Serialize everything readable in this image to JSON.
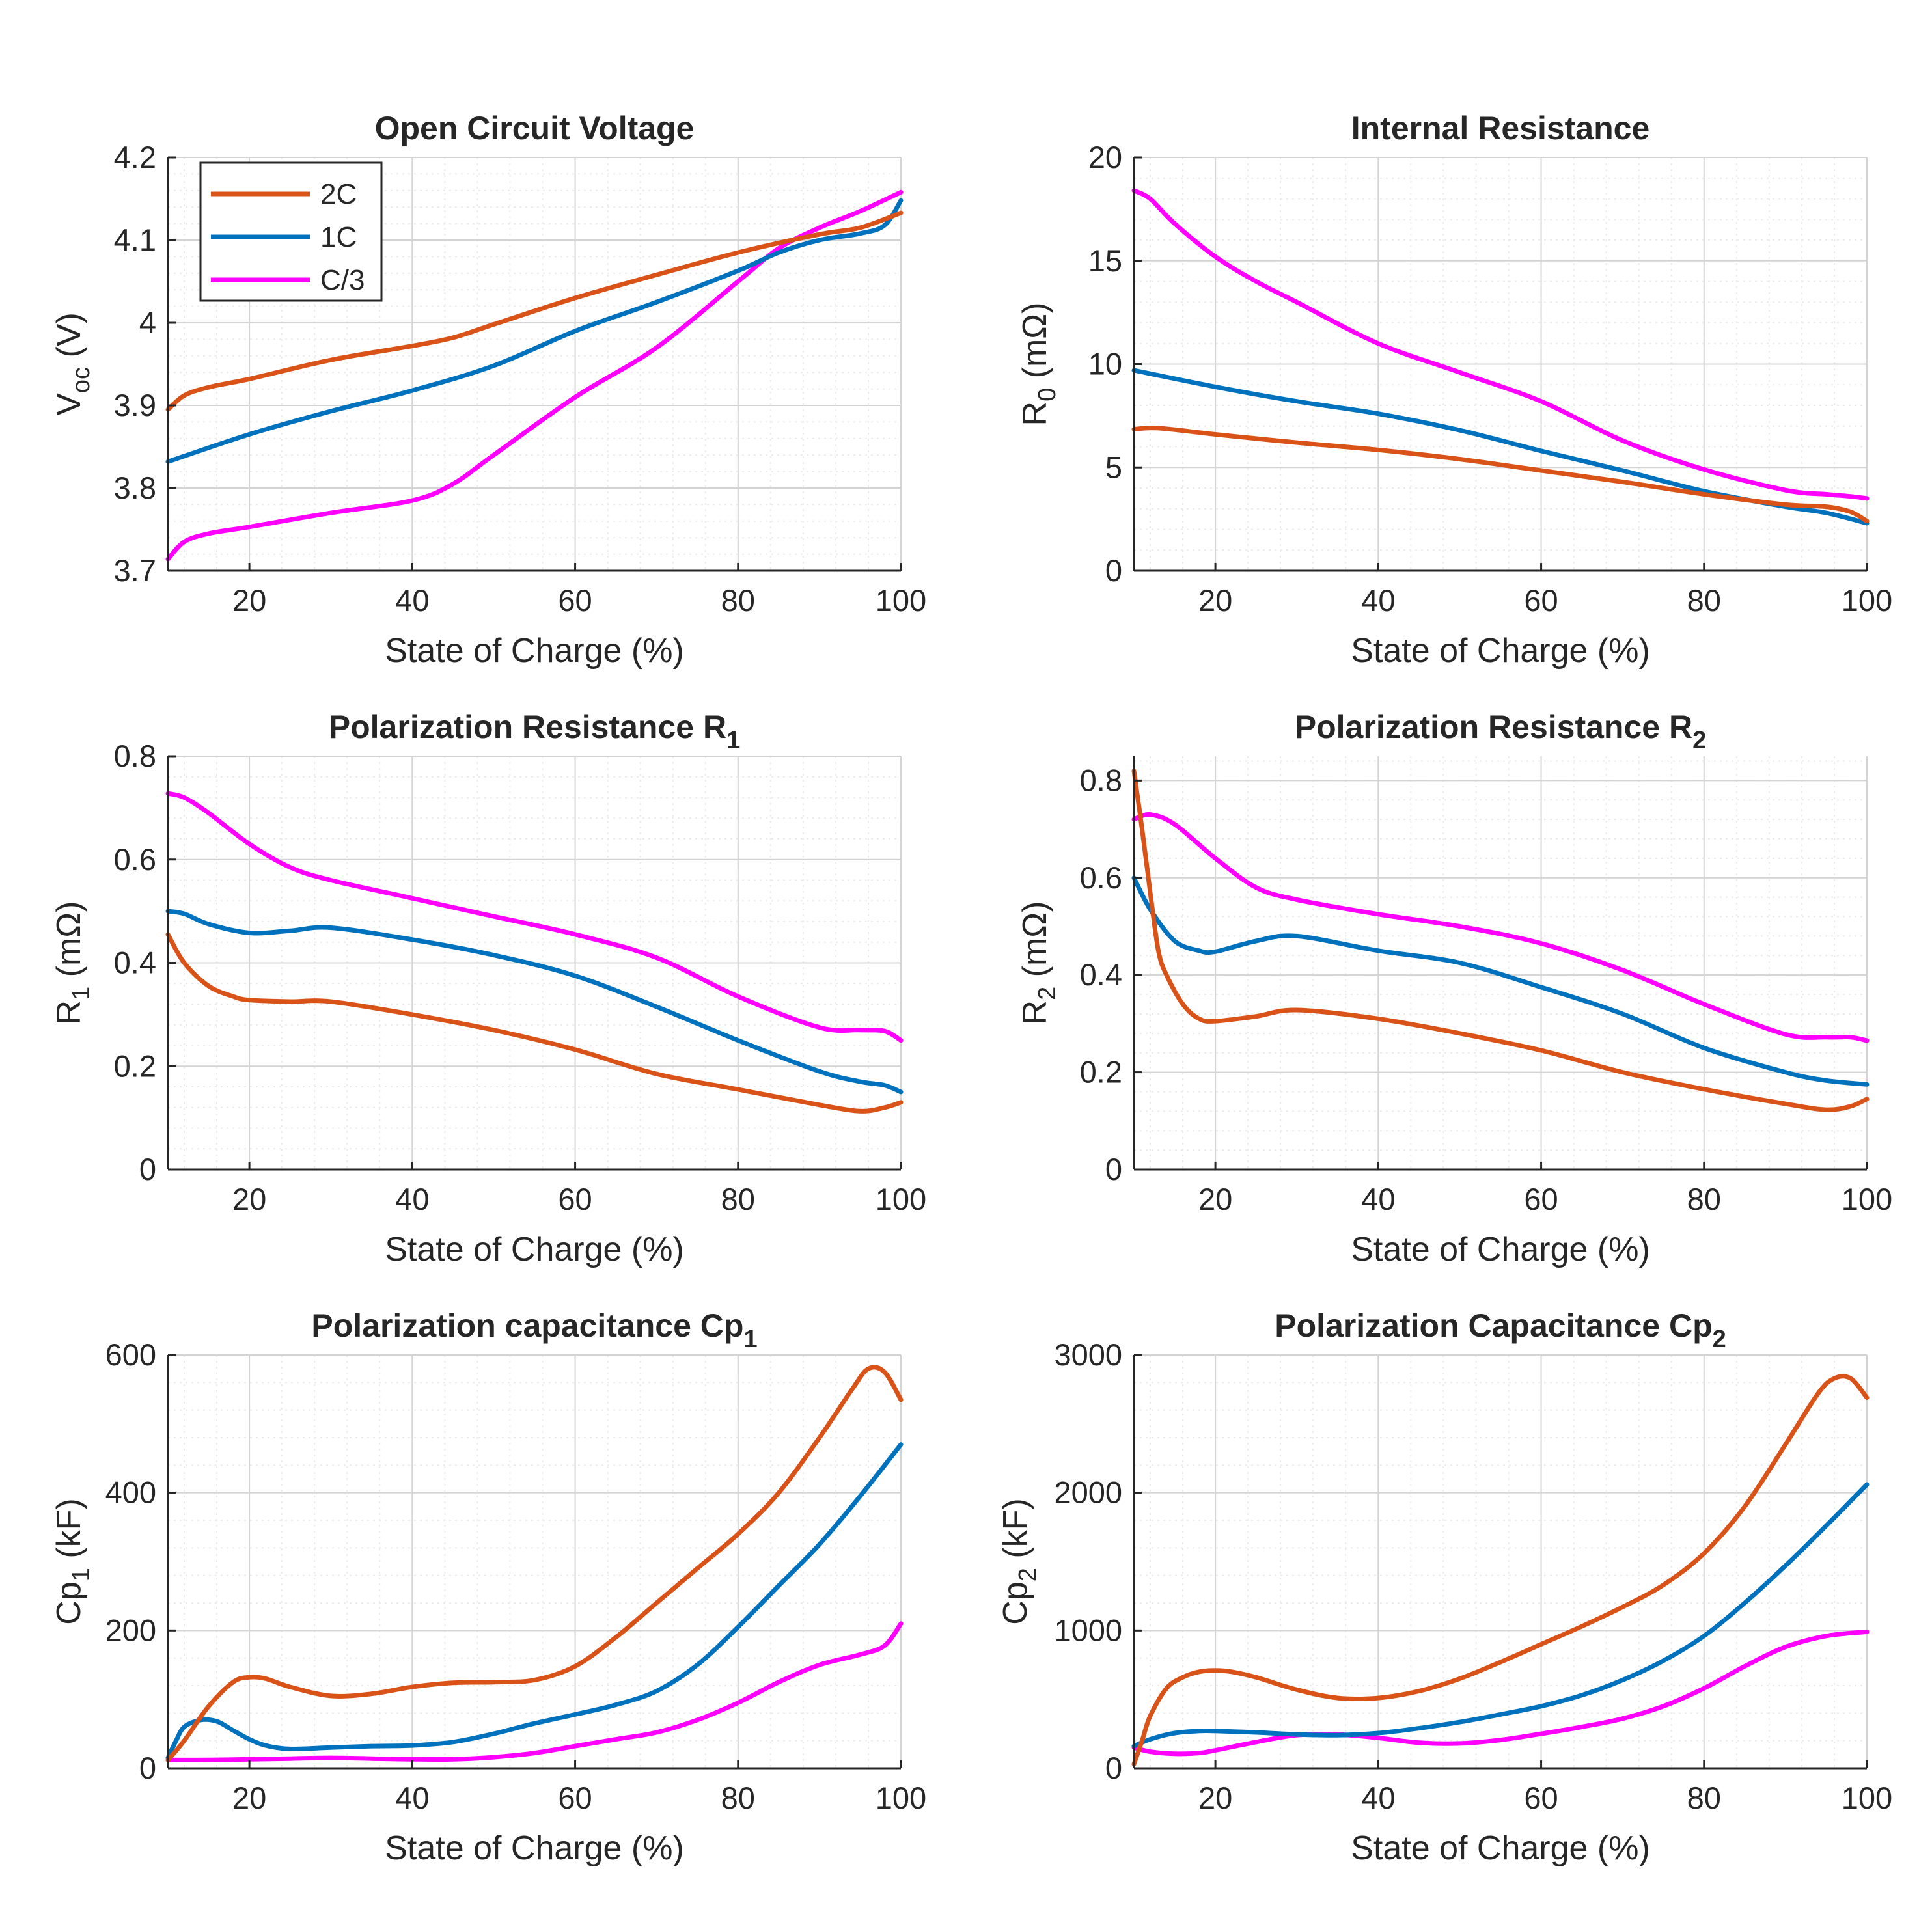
{
  "colors": {
    "2C": "#d95319",
    "1C": "#0072bd",
    "C/3": "#ff00ff",
    "axis": "#262626",
    "grid": "#d4d4d4",
    "minor_grid": "#ececec"
  },
  "legend": {
    "placement": "top-left",
    "panel": 0,
    "entries": [
      "2C",
      "1C",
      "C/3"
    ]
  },
  "chart_data": [
    {
      "type": "line",
      "title": "Open Circuit Voltage",
      "xlabel": "State of Charge (%)",
      "ylabel": "V",
      "ylabel_sub": "oc",
      "ylabel_suffix": " (V)",
      "xlim": [
        10,
        100
      ],
      "ylim": [
        3.7,
        4.2
      ],
      "xticks": [
        20,
        40,
        60,
        80,
        100
      ],
      "yticks": [
        3.7,
        3.8,
        3.9,
        4.0,
        4.1,
        4.2
      ],
      "ytick_labels": [
        "3.7",
        "3.8",
        "3.9",
        "4",
        "4.1",
        "4.2"
      ],
      "grid": true,
      "series": [
        {
          "name": "2C",
          "x": [
            10,
            12,
            15,
            20,
            30,
            40,
            45,
            50,
            60,
            70,
            80,
            90,
            95,
            100
          ],
          "values": [
            3.895,
            3.912,
            3.922,
            3.932,
            3.955,
            3.972,
            3.982,
            3.998,
            4.03,
            4.058,
            4.085,
            4.107,
            4.115,
            4.133
          ]
        },
        {
          "name": "1C",
          "x": [
            10,
            20,
            30,
            40,
            50,
            60,
            70,
            80,
            85,
            90,
            95,
            98,
            100
          ],
          "values": [
            3.832,
            3.865,
            3.893,
            3.918,
            3.948,
            3.99,
            4.025,
            4.063,
            4.085,
            4.1,
            4.108,
            4.118,
            4.148
          ]
        },
        {
          "name": "C/3",
          "x": [
            10,
            12,
            15,
            20,
            30,
            40,
            45,
            50,
            60,
            70,
            80,
            85,
            90,
            95,
            100
          ],
          "values": [
            3.714,
            3.735,
            3.745,
            3.753,
            3.77,
            3.785,
            3.805,
            3.84,
            3.91,
            3.97,
            4.05,
            4.09,
            4.115,
            4.135,
            4.158
          ]
        }
      ]
    },
    {
      "type": "line",
      "title": "Internal Resistance",
      "xlabel": "State of Charge (%)",
      "ylabel": "R",
      "ylabel_sub": "0",
      "ylabel_suffix": " (mΩ)",
      "xlim": [
        10,
        100
      ],
      "ylim": [
        0,
        20
      ],
      "xticks": [
        20,
        40,
        60,
        80,
        100
      ],
      "yticks": [
        0,
        5,
        10,
        15,
        20
      ],
      "ytick_labels": [
        "0",
        "5",
        "10",
        "15",
        "20"
      ],
      "grid": true,
      "series": [
        {
          "name": "2C",
          "x": [
            10,
            13,
            20,
            30,
            40,
            50,
            60,
            70,
            80,
            90,
            95,
            98,
            100
          ],
          "values": [
            6.85,
            6.9,
            6.6,
            6.2,
            5.85,
            5.4,
            4.85,
            4.3,
            3.7,
            3.2,
            3.1,
            2.85,
            2.4
          ]
        },
        {
          "name": "1C",
          "x": [
            10,
            20,
            30,
            40,
            50,
            60,
            70,
            80,
            90,
            95,
            100
          ],
          "values": [
            9.7,
            8.9,
            8.2,
            7.6,
            6.8,
            5.8,
            4.85,
            3.85,
            3.1,
            2.8,
            2.3
          ]
        },
        {
          "name": "C/3",
          "x": [
            10,
            12,
            15,
            20,
            25,
            30,
            40,
            50,
            60,
            70,
            80,
            90,
            95,
            98,
            100
          ],
          "values": [
            18.4,
            18.0,
            16.8,
            15.2,
            14.0,
            13.0,
            11.0,
            9.6,
            8.2,
            6.3,
            4.9,
            3.9,
            3.7,
            3.6,
            3.5
          ]
        }
      ]
    },
    {
      "type": "line",
      "title": "Polarization Resistance R",
      "title_sub": "1",
      "xlabel": "State of Charge (%)",
      "ylabel": "R",
      "ylabel_sub": "1",
      "ylabel_suffix": " (mΩ)",
      "xlim": [
        10,
        100
      ],
      "ylim": [
        0,
        0.8
      ],
      "xticks": [
        20,
        40,
        60,
        80,
        100
      ],
      "yticks": [
        0,
        0.2,
        0.4,
        0.6,
        0.8
      ],
      "ytick_labels": [
        "0",
        "0.2",
        "0.4",
        "0.6",
        "0.8"
      ],
      "grid": true,
      "series": [
        {
          "name": "2C",
          "x": [
            10,
            12,
            15,
            18,
            20,
            25,
            30,
            40,
            50,
            60,
            70,
            80,
            90,
            95,
            98,
            100
          ],
          "values": [
            0.455,
            0.4,
            0.355,
            0.335,
            0.328,
            0.325,
            0.325,
            0.3,
            0.27,
            0.232,
            0.185,
            0.155,
            0.125,
            0.113,
            0.12,
            0.13
          ]
        },
        {
          "name": "1C",
          "x": [
            10,
            12,
            15,
            20,
            25,
            30,
            40,
            50,
            60,
            70,
            80,
            90,
            95,
            98,
            100
          ],
          "values": [
            0.5,
            0.495,
            0.475,
            0.458,
            0.462,
            0.468,
            0.445,
            0.415,
            0.375,
            0.315,
            0.25,
            0.19,
            0.17,
            0.163,
            0.15
          ]
        },
        {
          "name": "C/3",
          "x": [
            10,
            12,
            15,
            20,
            25,
            30,
            40,
            50,
            60,
            70,
            80,
            90,
            95,
            98,
            100
          ],
          "values": [
            0.728,
            0.72,
            0.69,
            0.63,
            0.585,
            0.56,
            0.525,
            0.49,
            0.455,
            0.41,
            0.335,
            0.275,
            0.27,
            0.268,
            0.25
          ]
        }
      ]
    },
    {
      "type": "line",
      "title": "Polarization Resistance R",
      "title_sub": "2",
      "xlabel": "State of Charge (%)",
      "ylabel": "R",
      "ylabel_sub": "2",
      "ylabel_suffix": " (mΩ)",
      "xlim": [
        10,
        100
      ],
      "ylim": [
        0,
        0.85
      ],
      "xticks": [
        20,
        40,
        60,
        80,
        100
      ],
      "yticks": [
        0,
        0.2,
        0.4,
        0.6,
        0.8
      ],
      "ytick_labels": [
        "0",
        "0.2",
        "0.4",
        "0.6",
        "0.8"
      ],
      "grid": true,
      "series": [
        {
          "name": "2C",
          "x": [
            10,
            11,
            12,
            13,
            14,
            16,
            18,
            20,
            25,
            30,
            40,
            50,
            60,
            70,
            80,
            90,
            95,
            98,
            100
          ],
          "values": [
            0.82,
            0.7,
            0.57,
            0.45,
            0.4,
            0.34,
            0.31,
            0.305,
            0.315,
            0.328,
            0.31,
            0.28,
            0.245,
            0.2,
            0.165,
            0.135,
            0.123,
            0.13,
            0.145
          ]
        },
        {
          "name": "1C",
          "x": [
            10,
            12,
            15,
            18,
            20,
            25,
            30,
            40,
            50,
            60,
            70,
            80,
            90,
            95,
            100
          ],
          "values": [
            0.6,
            0.535,
            0.47,
            0.45,
            0.448,
            0.47,
            0.48,
            0.45,
            0.425,
            0.375,
            0.32,
            0.25,
            0.2,
            0.183,
            0.175
          ]
        },
        {
          "name": "C/3",
          "x": [
            10,
            12,
            15,
            20,
            25,
            30,
            40,
            50,
            60,
            70,
            80,
            90,
            95,
            98,
            100
          ],
          "values": [
            0.72,
            0.73,
            0.71,
            0.64,
            0.58,
            0.555,
            0.525,
            0.5,
            0.465,
            0.41,
            0.34,
            0.278,
            0.272,
            0.272,
            0.265
          ]
        }
      ]
    },
    {
      "type": "line",
      "title": "Polarization capacitance Cp",
      "title_sub": "1",
      "xlabel": "State of Charge (%)",
      "ylabel": "Cp",
      "ylabel_sub": "1",
      "ylabel_suffix": " (kF)",
      "xlim": [
        10,
        100
      ],
      "ylim": [
        0,
        600
      ],
      "xticks": [
        20,
        40,
        60,
        80,
        100
      ],
      "yticks": [
        0,
        200,
        400,
        600
      ],
      "ytick_labels": [
        "0",
        "200",
        "400",
        "600"
      ],
      "grid": true,
      "series": [
        {
          "name": "2C",
          "x": [
            10,
            12,
            15,
            18,
            20,
            22,
            25,
            30,
            35,
            40,
            45,
            50,
            55,
            60,
            65,
            70,
            75,
            80,
            85,
            90,
            94,
            96,
            98,
            100
          ],
          "values": [
            12,
            40,
            90,
            125,
            132,
            130,
            118,
            105,
            108,
            118,
            124,
            125,
            128,
            148,
            190,
            240,
            290,
            340,
            400,
            480,
            550,
            580,
            575,
            535
          ]
        },
        {
          "name": "1C",
          "x": [
            10,
            11,
            12,
            14,
            16,
            18,
            20,
            22,
            25,
            30,
            35,
            40,
            45,
            50,
            55,
            60,
            65,
            70,
            75,
            80,
            85,
            90,
            95,
            100
          ],
          "values": [
            15,
            40,
            60,
            70,
            68,
            55,
            42,
            33,
            28,
            30,
            32,
            33,
            38,
            50,
            65,
            78,
            92,
            112,
            150,
            205,
            265,
            325,
            395,
            470
          ]
        },
        {
          "name": "C/3",
          "x": [
            10,
            15,
            20,
            25,
            30,
            35,
            40,
            45,
            50,
            55,
            60,
            65,
            70,
            75,
            80,
            85,
            90,
            95,
            98,
            100
          ],
          "values": [
            12,
            12,
            13,
            14,
            15,
            14,
            13,
            13,
            16,
            22,
            32,
            42,
            52,
            70,
            95,
            125,
            150,
            165,
            178,
            210
          ]
        }
      ]
    },
    {
      "type": "line",
      "title": "Polarization Capacitance Cp",
      "title_sub": "2",
      "xlabel": "State of Charge (%)",
      "ylabel": "Cp",
      "ylabel_sub": "2",
      "ylabel_suffix": " (kF)",
      "xlim": [
        10,
        100
      ],
      "ylim": [
        0,
        3000
      ],
      "xticks": [
        20,
        40,
        60,
        80,
        100
      ],
      "yticks": [
        0,
        1000,
        2000,
        3000
      ],
      "ytick_labels": [
        "0",
        "1000",
        "2000",
        "3000"
      ],
      "grid": true,
      "series": [
        {
          "name": "2C",
          "x": [
            10,
            11,
            12,
            14,
            16,
            18,
            20,
            22,
            25,
            30,
            35,
            40,
            45,
            50,
            55,
            60,
            65,
            70,
            75,
            80,
            85,
            90,
            94,
            96,
            98,
            100
          ],
          "values": [
            30,
            200,
            380,
            580,
            660,
            700,
            710,
            700,
            660,
            570,
            510,
            510,
            560,
            650,
            770,
            900,
            1030,
            1170,
            1330,
            1560,
            1900,
            2350,
            2720,
            2830,
            2830,
            2690
          ]
        },
        {
          "name": "1C",
          "x": [
            10,
            12,
            15,
            18,
            20,
            25,
            30,
            35,
            40,
            45,
            50,
            55,
            60,
            65,
            70,
            75,
            80,
            85,
            90,
            95,
            100
          ],
          "values": [
            160,
            210,
            255,
            270,
            270,
            260,
            245,
            240,
            255,
            290,
            335,
            390,
            450,
            530,
            640,
            780,
            960,
            1200,
            1470,
            1760,
            2060
          ]
        },
        {
          "name": "C/3",
          "x": [
            10,
            12,
            15,
            18,
            20,
            25,
            30,
            35,
            40,
            45,
            50,
            55,
            60,
            65,
            70,
            75,
            80,
            85,
            90,
            95,
            100
          ],
          "values": [
            150,
            120,
            105,
            110,
            130,
            190,
            240,
            245,
            220,
            185,
            180,
            205,
            250,
            300,
            360,
            450,
            580,
            740,
            880,
            960,
            990
          ]
        }
      ]
    }
  ]
}
